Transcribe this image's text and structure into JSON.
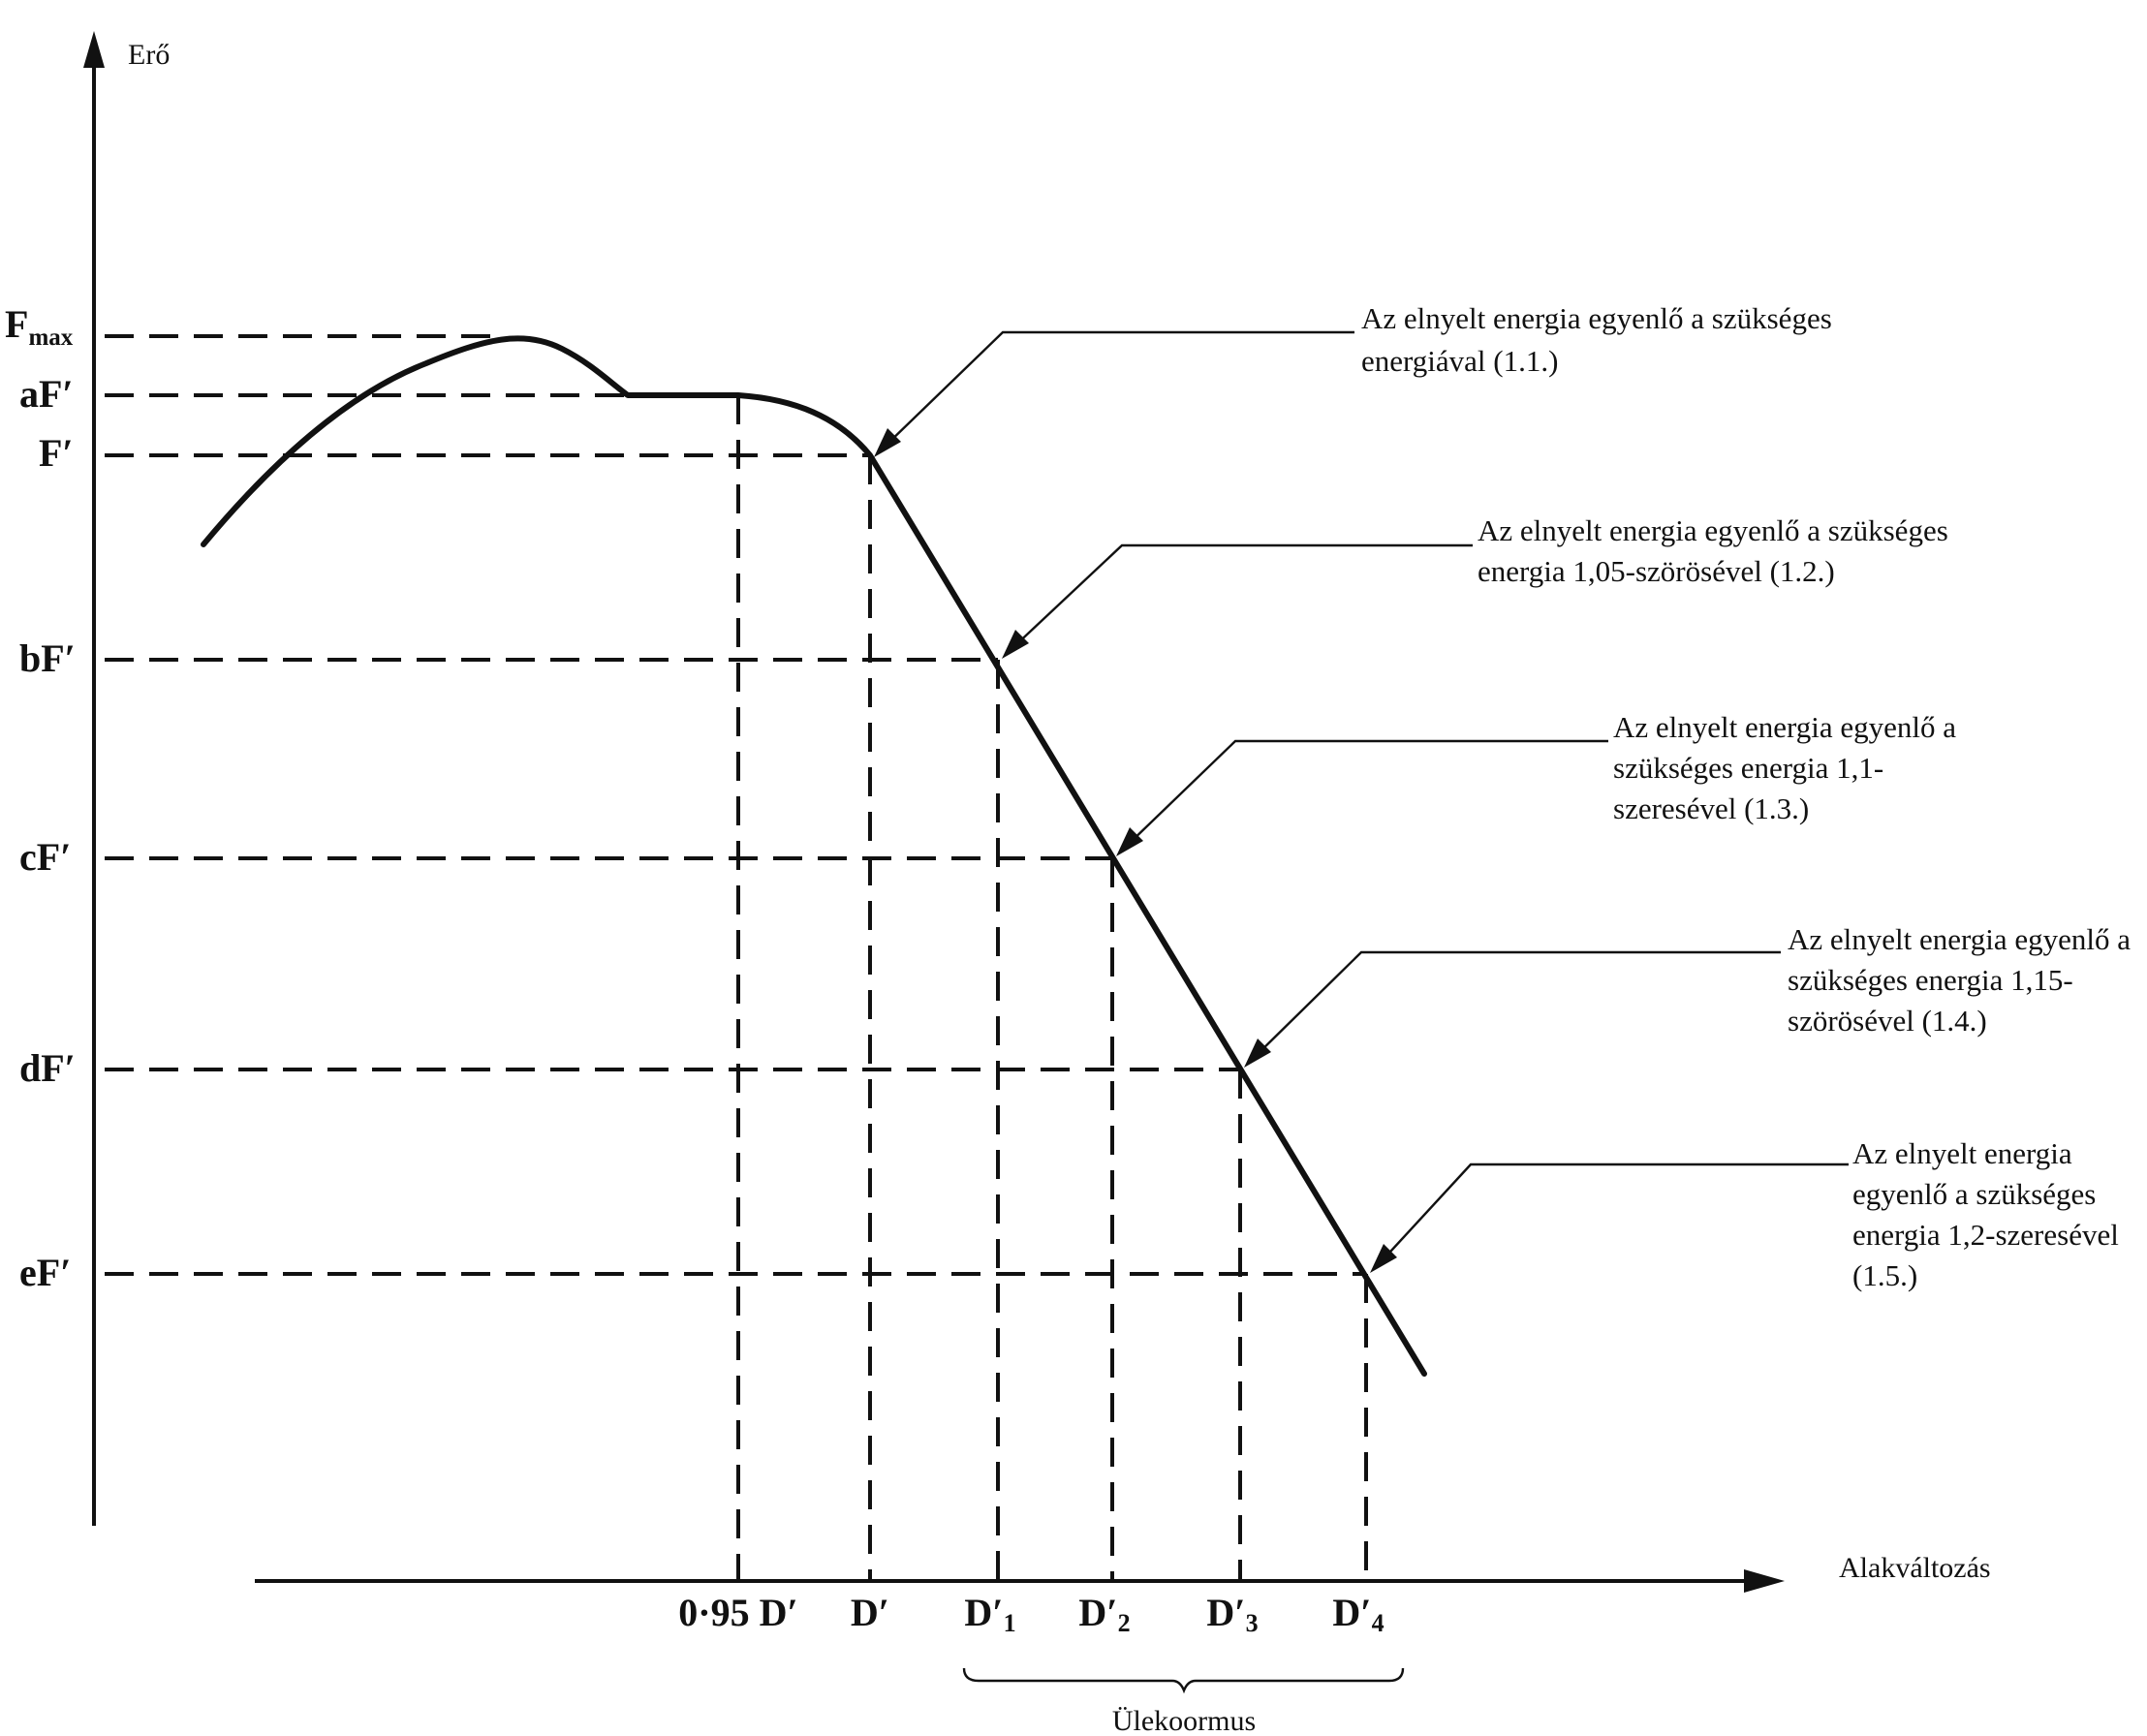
{
  "y_axis": {
    "label": "Erő"
  },
  "x_axis": {
    "label": "Alakváltozás"
  },
  "y_levels": [
    {
      "id": "fmax",
      "text": "F",
      "sub": "max"
    },
    {
      "id": "af",
      "text": "aF′"
    },
    {
      "id": "f",
      "text": "F′"
    },
    {
      "id": "bf",
      "text": "bF′"
    },
    {
      "id": "cf",
      "text": "cF′"
    },
    {
      "id": "df",
      "text": "dF′"
    },
    {
      "id": "ef",
      "text": "eF′"
    }
  ],
  "x_ticks": [
    {
      "id": "d095",
      "text": "0·95 D′"
    },
    {
      "id": "d",
      "text": "D′"
    },
    {
      "id": "d1",
      "text": "D′",
      "sub": "1"
    },
    {
      "id": "d2",
      "text": "D′",
      "sub": "2"
    },
    {
      "id": "d3",
      "text": "D′",
      "sub": "3"
    },
    {
      "id": "d4",
      "text": "D′",
      "sub": "4"
    }
  ],
  "overload": {
    "label": "Ülekoormus"
  },
  "annotations": [
    {
      "id": "a11",
      "lines": [
        "Az elnyelt energia egyenlő a szükséges",
        "energiával (1.1.)"
      ]
    },
    {
      "id": "a12",
      "lines": [
        "Az elnyelt energia egyenlő a szükséges",
        "energia 1,05-szörösével (1.2.)"
      ]
    },
    {
      "id": "a13",
      "lines": [
        "Az elnyelt energia egyenlő a",
        "szükséges energia 1,1-",
        "szeresével (1.3.)"
      ]
    },
    {
      "id": "a14",
      "lines": [
        "Az elnyelt energia egyenlő a",
        "szükséges energia 1,15-",
        "szörösével (1.4.)"
      ]
    },
    {
      "id": "a15",
      "lines": [
        "Az elnyelt energia",
        "egyenlő a szükséges",
        "energia 1,2-szeresével",
        "(1.5.)"
      ]
    }
  ]
}
